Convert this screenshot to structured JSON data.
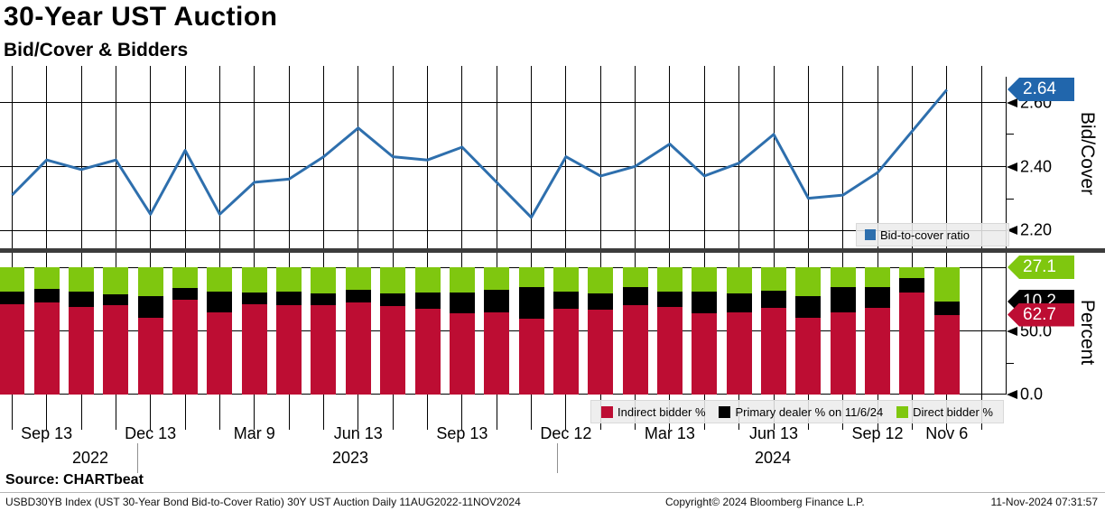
{
  "header": {
    "title": "30-Year UST Auction",
    "subtitle": "Bid/Cover & Bidders"
  },
  "colors": {
    "line_blue": "#2e6fad",
    "tag_blue": "#2166ac",
    "indirect_red": "#bd0d33",
    "primary_black": "#000000",
    "direct_green": "#7fc70f",
    "divider_gray": "#3c3c3c"
  },
  "top_chart": {
    "axis_title": "Bid/Cover",
    "legend_label": "Bid-to-cover ratio",
    "last_value_tag": "2.64",
    "ticks": [
      "2.60",
      "2.40",
      "2.20"
    ]
  },
  "bottom_chart": {
    "axis_title": "Percent",
    "ticks": [
      "50.0",
      "0.0"
    ],
    "tags": {
      "direct": "27.1",
      "primary": "10.2",
      "indirect": "62.7"
    },
    "legend": [
      {
        "label": "Indirect bidder %",
        "color": "#bd0d33"
      },
      {
        "label": "Primary dealer % on 11/6/24",
        "color": "#000000"
      },
      {
        "label": "Direct bidder %",
        "color": "#7fc70f"
      }
    ]
  },
  "x_axis": {
    "ticks": [
      {
        "i": 1,
        "label": "Sep 13"
      },
      {
        "i": 4,
        "label": "Dec 13"
      },
      {
        "i": 7,
        "label": "Mar 9"
      },
      {
        "i": 10,
        "label": "Jun 13"
      },
      {
        "i": 13,
        "label": "Sep 13"
      },
      {
        "i": 16,
        "label": "Dec 12"
      },
      {
        "i": 19,
        "label": "Mar 13"
      },
      {
        "i": 22,
        "label": "Jun 13"
      },
      {
        "i": 25,
        "label": "Sep 12"
      },
      {
        "i": 27,
        "label": "Nov 6"
      }
    ],
    "years": [
      "2022",
      "2023",
      "2024"
    ]
  },
  "chart_data": [
    {
      "type": "line",
      "name": "Bid-to-cover ratio",
      "x": [
        "Aug 2022",
        "Sep 2022",
        "Oct 2022",
        "Nov 2022",
        "Dec 2022",
        "Jan 2023",
        "Feb 2023",
        "Mar 2023",
        "Apr 2023",
        "May 2023",
        "Jun 2023",
        "Jul 2023",
        "Aug 2023",
        "Sep 2023",
        "Oct 2023",
        "Nov 2023",
        "Dec 2023",
        "Jan 2024",
        "Feb 2024",
        "Mar 2024",
        "Apr 2024",
        "May 2024",
        "Jun 2024",
        "Jul 2024",
        "Aug 2024",
        "Sep 2024",
        "Oct 2024",
        "Nov 2024"
      ],
      "values": [
        2.31,
        2.42,
        2.39,
        2.42,
        2.25,
        2.45,
        2.25,
        2.35,
        2.36,
        2.43,
        2.52,
        2.43,
        2.42,
        2.46,
        2.35,
        2.24,
        2.43,
        2.37,
        2.4,
        2.47,
        2.37,
        2.41,
        2.5,
        2.3,
        2.31,
        2.38,
        2.51,
        2.64
      ],
      "ylabel": "Bid/Cover",
      "ylim": [
        2.2,
        2.68
      ],
      "yticks": [
        2.2,
        2.4,
        2.6
      ],
      "last_value": 2.64,
      "grid": true,
      "legend_position": "bottom-right"
    },
    {
      "type": "bar",
      "stacked": true,
      "categories": [
        "Aug 2022",
        "Sep 2022",
        "Oct 2022",
        "Nov 2022",
        "Dec 2022",
        "Jan 2023",
        "Feb 2023",
        "Mar 2023",
        "Apr 2023",
        "May 2023",
        "Jun 2023",
        "Jul 2023",
        "Aug 2023",
        "Sep 2023",
        "Oct 2023",
        "Nov 2023",
        "Dec 2023",
        "Jan 2024",
        "Feb 2024",
        "Mar 2024",
        "Apr 2024",
        "May 2024",
        "Jun 2024",
        "Jul 2024",
        "Aug 2024",
        "Sep 2024",
        "Oct 2024",
        "Nov 2024"
      ],
      "series": [
        {
          "name": "Indirect bidder %",
          "color": "#bd0d33",
          "values": [
            71.1,
            72.4,
            68.8,
            70.0,
            60.5,
            74.7,
            64.8,
            71.2,
            70.6,
            70.0,
            72.4,
            69.3,
            67.6,
            64.0,
            64.5,
            59.3,
            67.6,
            66.4,
            70.4,
            68.8,
            64.0,
            64.5,
            68.3,
            60.5,
            64.7,
            68.3,
            79.9,
            62.7
          ]
        },
        {
          "name": "Primary dealer % on 11/6/24",
          "color": "#000000",
          "values": [
            10.0,
            10.6,
            11.9,
            9.0,
            16.6,
            9.1,
            15.9,
            8.8,
            10.6,
            9.8,
            9.9,
            10.2,
            12.6,
            16.0,
            17.8,
            25.4,
            13.5,
            13.1,
            14.3,
            12.3,
            17.1,
            15.3,
            13.3,
            16.6,
            20.0,
            15.9,
            11.9,
            10.2
          ]
        },
        {
          "name": "Direct bidder %",
          "color": "#7fc70f",
          "values": [
            18.9,
            17.0,
            19.3,
            21.0,
            22.9,
            16.2,
            19.3,
            20.0,
            18.8,
            20.2,
            17.7,
            20.5,
            19.8,
            20.0,
            17.7,
            15.3,
            18.9,
            20.5,
            15.3,
            18.9,
            18.9,
            20.2,
            18.4,
            22.9,
            15.3,
            15.8,
            8.2,
            27.1
          ]
        }
      ],
      "ylabel": "Percent",
      "ylim": [
        0,
        100
      ],
      "yticks": [
        0.0,
        50.0
      ],
      "last_values": {
        "indirect": 62.7,
        "primary": 10.2,
        "direct": 27.1
      }
    }
  ],
  "footer": {
    "source": "Source: CHARTbeat",
    "left": "USBD30YB Index (UST 30-Year Bond Bid-to-Cover Ratio) 30Y UST Auction  Daily 11AUG2022-11NOV2024",
    "copyright": "Copyright© 2024 Bloomberg Finance L.P.",
    "datetime": "11-Nov-2024 07:31:57"
  }
}
